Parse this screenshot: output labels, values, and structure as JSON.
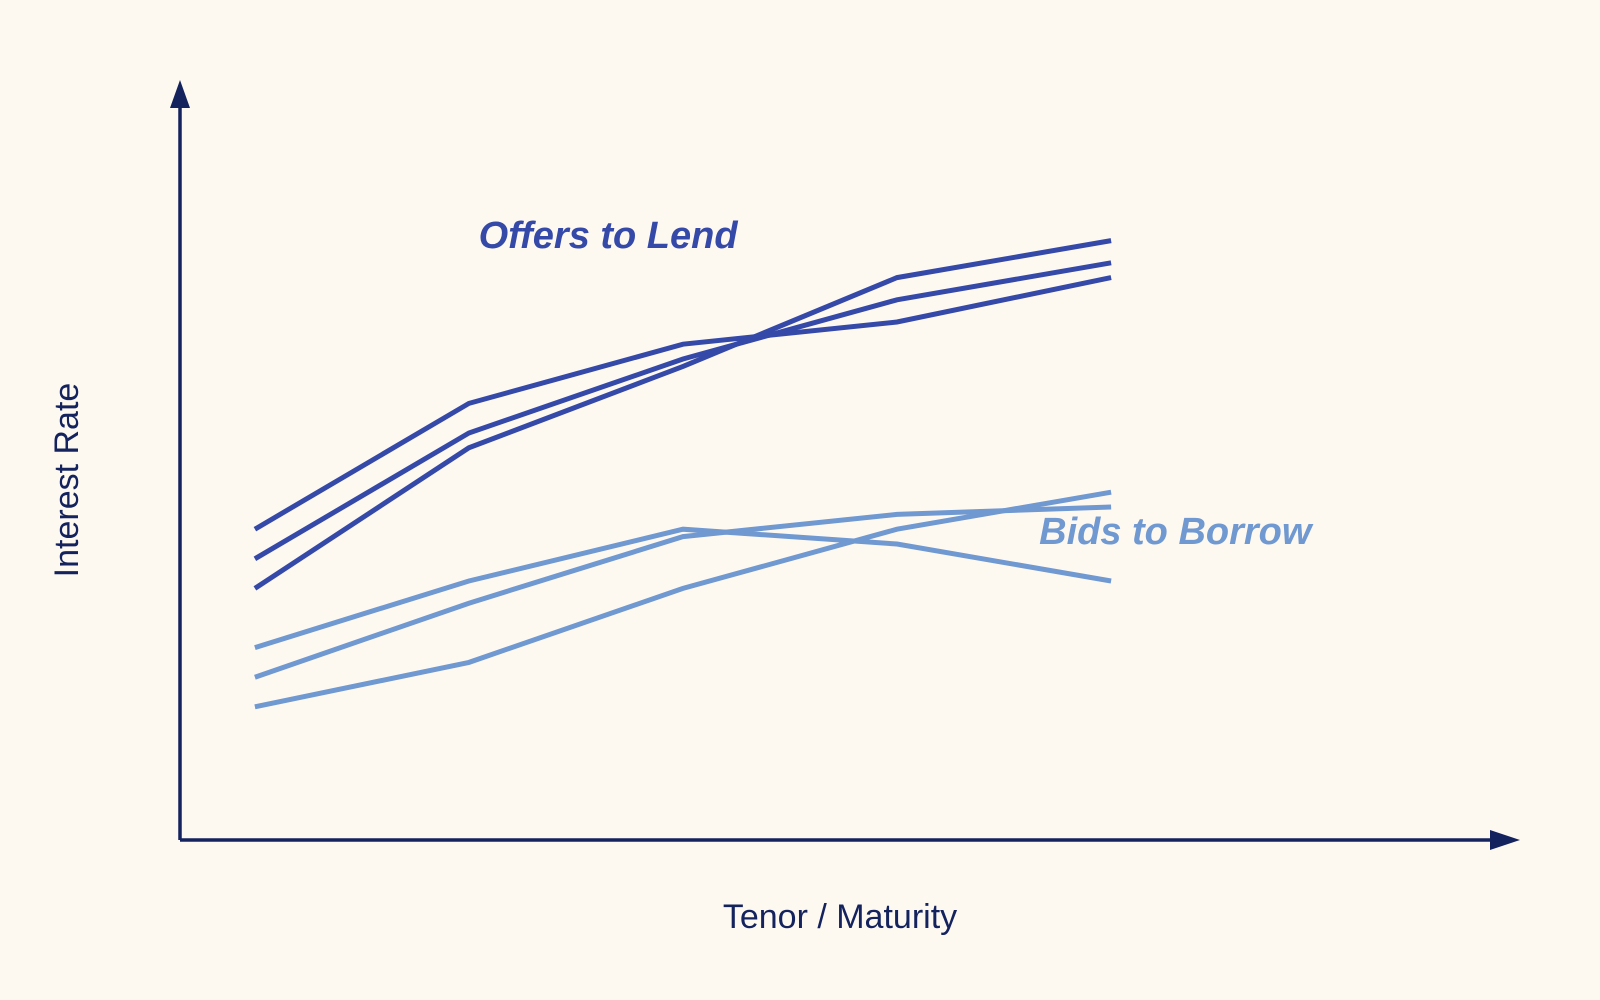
{
  "colors": {
    "background": "#fef9f0",
    "axis": "#14235e",
    "offers": "#3549a8",
    "bids": "#7098d1"
  },
  "chart_data": {
    "type": "line",
    "title": "",
    "xlabel": "Tenor / Maturity",
    "ylabel": "Interest Rate",
    "x": [
      1,
      2,
      3,
      4,
      5
    ],
    "xlim": [
      0.65,
      6.35
    ],
    "ylim": [
      0,
      10
    ],
    "grid": false,
    "axis_ticks": false,
    "series": [
      {
        "group": "offers",
        "values": [
          4.2,
          5.9,
          6.7,
          7.0,
          7.6
        ]
      },
      {
        "group": "offers",
        "values": [
          3.8,
          5.5,
          6.5,
          7.3,
          7.8
        ]
      },
      {
        "group": "offers",
        "values": [
          3.4,
          5.3,
          6.4,
          7.6,
          8.1
        ]
      },
      {
        "group": "bids",
        "values": [
          2.6,
          3.5,
          4.2,
          4.0,
          3.5
        ]
      },
      {
        "group": "bids",
        "values": [
          2.2,
          3.2,
          4.1,
          4.4,
          4.5
        ]
      },
      {
        "group": "bids",
        "values": [
          1.8,
          2.4,
          3.4,
          4.2,
          4.7
        ]
      }
    ],
    "annotations": [
      {
        "group": "offers",
        "text": "Offers to Lend",
        "x": 2.65,
        "y": 8.0
      },
      {
        "group": "bids",
        "text": "Bids to Borrow",
        "x": 5.3,
        "y": 4.0
      }
    ]
  }
}
